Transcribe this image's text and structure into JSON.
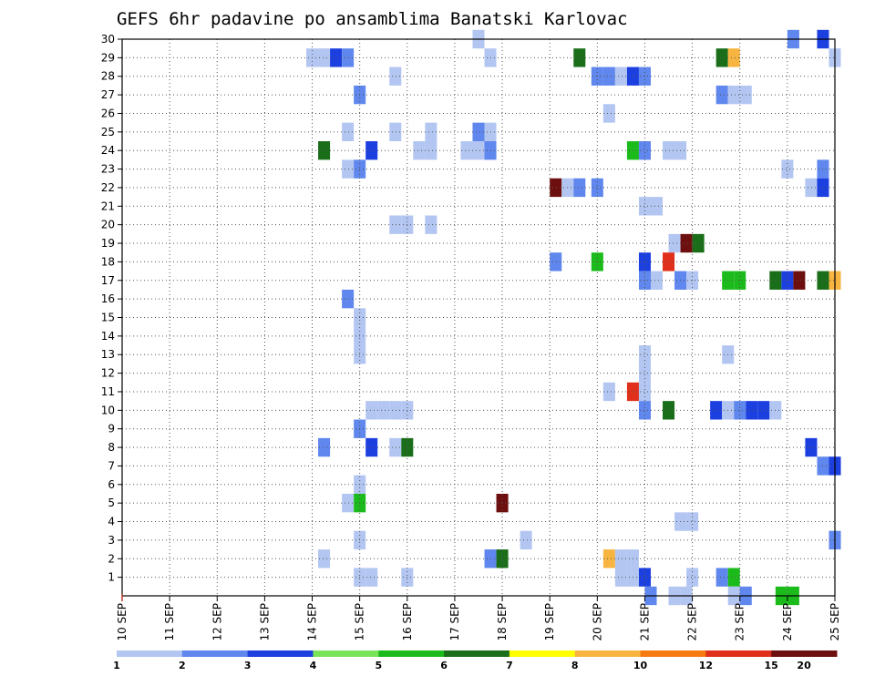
{
  "chart_data": {
    "type": "heatmap",
    "title": "GEFS 6hr padavine po ansamblima Banatski Karlovac",
    "xlabel": "",
    "ylabel": "",
    "x_axis": {
      "unit": "6h step",
      "range": [
        0,
        60
      ],
      "tick_labels": [
        "10 SEP",
        "11 SEP",
        "12 SEP",
        "13 SEP",
        "14 SEP",
        "15 SEP",
        "16 SEP",
        "17 SEP",
        "18 SEP",
        "19 SEP",
        "20 SEP",
        "21 SEP",
        "22 SEP",
        "23 SEP",
        "24 SEP",
        "25 SEP"
      ]
    },
    "y_axis": {
      "range": [
        0,
        30
      ],
      "tick_labels": [
        "1",
        "2",
        "3",
        "4",
        "5",
        "6",
        "7",
        "8",
        "9",
        "10",
        "11",
        "12",
        "13",
        "14",
        "15",
        "16",
        "17",
        "18",
        "19",
        "20",
        "21",
        "22",
        "23",
        "24",
        "25",
        "26",
        "27",
        "28",
        "29",
        "30"
      ]
    },
    "grid": true,
    "colorbar": {
      "placement": "bottom",
      "colors": [
        "#b3c6f2",
        "#5f87ed",
        "#1c3fe0",
        "#79e35a",
        "#1cbb1c",
        "#1a6e1a",
        "#ffff00",
        "#f7b440",
        "#f77a10",
        "#e0301c",
        "#6e0f0f"
      ],
      "tick_labels": [
        "1",
        "2",
        "3",
        "4",
        "5",
        "6",
        "7",
        "8",
        "10",
        "12",
        "15",
        "20"
      ]
    },
    "cells": [
      {
        "x": 30,
        "y": 30,
        "v": 1
      },
      {
        "x": 56.5,
        "y": 30,
        "v": 2
      },
      {
        "x": 59,
        "y": 30,
        "v": 3
      },
      {
        "x": 16,
        "y": 29,
        "v": 1
      },
      {
        "x": 17,
        "y": 29,
        "v": 1
      },
      {
        "x": 18,
        "y": 29,
        "v": 3
      },
      {
        "x": 19,
        "y": 29,
        "v": 2
      },
      {
        "x": 31,
        "y": 29,
        "v": 1
      },
      {
        "x": 38.5,
        "y": 29,
        "v": 6
      },
      {
        "x": 50.5,
        "y": 29,
        "v": 6
      },
      {
        "x": 51.5,
        "y": 29,
        "v": 8
      },
      {
        "x": 60,
        "y": 29,
        "v": 1
      },
      {
        "x": 23,
        "y": 28,
        "v": 1
      },
      {
        "x": 40,
        "y": 28,
        "v": 2
      },
      {
        "x": 41,
        "y": 28,
        "v": 2
      },
      {
        "x": 42,
        "y": 28,
        "v": 1
      },
      {
        "x": 43,
        "y": 28,
        "v": 3
      },
      {
        "x": 44,
        "y": 28,
        "v": 2
      },
      {
        "x": 20,
        "y": 27,
        "v": 2
      },
      {
        "x": 50.5,
        "y": 27,
        "v": 2
      },
      {
        "x": 51.5,
        "y": 27,
        "v": 1
      },
      {
        "x": 52.5,
        "y": 27,
        "v": 1
      },
      {
        "x": 41,
        "y": 26,
        "v": 1
      },
      {
        "x": 19,
        "y": 25,
        "v": 1
      },
      {
        "x": 23,
        "y": 25,
        "v": 1
      },
      {
        "x": 26,
        "y": 25,
        "v": 1
      },
      {
        "x": 30,
        "y": 25,
        "v": 2
      },
      {
        "x": 31,
        "y": 25,
        "v": 1
      },
      {
        "x": 17,
        "y": 24,
        "v": 6
      },
      {
        "x": 21,
        "y": 24,
        "v": 3
      },
      {
        "x": 25,
        "y": 24,
        "v": 1
      },
      {
        "x": 26,
        "y": 24,
        "v": 1
      },
      {
        "x": 29,
        "y": 24,
        "v": 1
      },
      {
        "x": 30,
        "y": 24,
        "v": 1
      },
      {
        "x": 31,
        "y": 24,
        "v": 2
      },
      {
        "x": 43,
        "y": 24,
        "v": 5
      },
      {
        "x": 44,
        "y": 24,
        "v": 2
      },
      {
        "x": 46,
        "y": 24,
        "v": 1
      },
      {
        "x": 47,
        "y": 24,
        "v": 1
      },
      {
        "x": 19,
        "y": 23,
        "v": 1
      },
      {
        "x": 20,
        "y": 23,
        "v": 2
      },
      {
        "x": 56,
        "y": 23,
        "v": 1
      },
      {
        "x": 59,
        "y": 23,
        "v": 2
      },
      {
        "x": 36.5,
        "y": 22,
        "v": 15
      },
      {
        "x": 37.5,
        "y": 22,
        "v": 1
      },
      {
        "x": 38.5,
        "y": 22,
        "v": 2
      },
      {
        "x": 40,
        "y": 22,
        "v": 2
      },
      {
        "x": 58,
        "y": 22,
        "v": 1
      },
      {
        "x": 59,
        "y": 22,
        "v": 3
      },
      {
        "x": 44,
        "y": 21,
        "v": 1
      },
      {
        "x": 45,
        "y": 21,
        "v": 1
      },
      {
        "x": 23,
        "y": 20,
        "v": 1
      },
      {
        "x": 24,
        "y": 20,
        "v": 1
      },
      {
        "x": 26,
        "y": 20,
        "v": 1
      },
      {
        "x": 46.5,
        "y": 19,
        "v": 1
      },
      {
        "x": 47.5,
        "y": 19,
        "v": 20
      },
      {
        "x": 48.5,
        "y": 19,
        "v": 6
      },
      {
        "x": 36.5,
        "y": 18,
        "v": 2
      },
      {
        "x": 40,
        "y": 18,
        "v": 5
      },
      {
        "x": 44,
        "y": 18,
        "v": 3
      },
      {
        "x": 46,
        "y": 18,
        "v": 12
      },
      {
        "x": 44,
        "y": 17,
        "v": 2
      },
      {
        "x": 45,
        "y": 17,
        "v": 1
      },
      {
        "x": 47,
        "y": 17,
        "v": 2
      },
      {
        "x": 48,
        "y": 17,
        "v": 1
      },
      {
        "x": 51,
        "y": 17,
        "v": 5
      },
      {
        "x": 52,
        "y": 17,
        "v": 5
      },
      {
        "x": 55,
        "y": 17,
        "v": 6
      },
      {
        "x": 56,
        "y": 17,
        "v": 3
      },
      {
        "x": 57,
        "y": 17,
        "v": 15
      },
      {
        "x": 59,
        "y": 17,
        "v": 6
      },
      {
        "x": 60,
        "y": 17,
        "v": 8
      },
      {
        "x": 19,
        "y": 16,
        "v": 2
      },
      {
        "x": 20,
        "y": 15,
        "v": 1
      },
      {
        "x": 20,
        "y": 14,
        "v": 1
      },
      {
        "x": 20,
        "y": 13,
        "v": 1
      },
      {
        "x": 44,
        "y": 13,
        "v": 1
      },
      {
        "x": 51,
        "y": 13,
        "v": 1
      },
      {
        "x": 44,
        "y": 12,
        "v": 1
      },
      {
        "x": 41,
        "y": 11,
        "v": 1
      },
      {
        "x": 43,
        "y": 11,
        "v": 12
      },
      {
        "x": 44,
        "y": 11,
        "v": 1
      },
      {
        "x": 21,
        "y": 10,
        "v": 1
      },
      {
        "x": 22,
        "y": 10,
        "v": 1
      },
      {
        "x": 23,
        "y": 10,
        "v": 1
      },
      {
        "x": 24,
        "y": 10,
        "v": 1
      },
      {
        "x": 44,
        "y": 10,
        "v": 2
      },
      {
        "x": 46,
        "y": 10,
        "v": 6
      },
      {
        "x": 50,
        "y": 10,
        "v": 3
      },
      {
        "x": 51,
        "y": 10,
        "v": 1
      },
      {
        "x": 52,
        "y": 10,
        "v": 2
      },
      {
        "x": 53,
        "y": 10,
        "v": 3
      },
      {
        "x": 54,
        "y": 10,
        "v": 3
      },
      {
        "x": 55,
        "y": 10,
        "v": 1
      },
      {
        "x": 20,
        "y": 9,
        "v": 2
      },
      {
        "x": 17,
        "y": 8,
        "v": 2
      },
      {
        "x": 21,
        "y": 8,
        "v": 3
      },
      {
        "x": 23,
        "y": 8,
        "v": 1
      },
      {
        "x": 24,
        "y": 8,
        "v": 6
      },
      {
        "x": 58,
        "y": 8,
        "v": 3
      },
      {
        "x": 59,
        "y": 7,
        "v": 2
      },
      {
        "x": 60,
        "y": 7,
        "v": 3
      },
      {
        "x": 20,
        "y": 6,
        "v": 1
      },
      {
        "x": 19,
        "y": 5,
        "v": 1
      },
      {
        "x": 20,
        "y": 5,
        "v": 5
      },
      {
        "x": 32,
        "y": 5,
        "v": 20
      },
      {
        "x": 47,
        "y": 4,
        "v": 1
      },
      {
        "x": 48,
        "y": 4,
        "v": 1
      },
      {
        "x": 20,
        "y": 3,
        "v": 1
      },
      {
        "x": 34,
        "y": 3,
        "v": 1
      },
      {
        "x": 60,
        "y": 3,
        "v": 2
      },
      {
        "x": 17,
        "y": 2,
        "v": 1
      },
      {
        "x": 31,
        "y": 2,
        "v": 2
      },
      {
        "x": 32,
        "y": 2,
        "v": 6
      },
      {
        "x": 41,
        "y": 2,
        "v": 8
      },
      {
        "x": 42,
        "y": 2,
        "v": 1
      },
      {
        "x": 43,
        "y": 2,
        "v": 1
      },
      {
        "x": 20,
        "y": 1,
        "v": 1
      },
      {
        "x": 21,
        "y": 1,
        "v": 1
      },
      {
        "x": 24,
        "y": 1,
        "v": 1
      },
      {
        "x": 42,
        "y": 1,
        "v": 1
      },
      {
        "x": 43,
        "y": 1,
        "v": 1
      },
      {
        "x": 44,
        "y": 1,
        "v": 3
      },
      {
        "x": 48,
        "y": 1,
        "v": 1
      },
      {
        "x": 50.5,
        "y": 1,
        "v": 2
      },
      {
        "x": 51.5,
        "y": 1,
        "v": 5
      },
      {
        "x": 44.5,
        "y": 0,
        "v": 2
      },
      {
        "x": 46.5,
        "y": 0,
        "v": 1
      },
      {
        "x": 47.5,
        "y": 0,
        "v": 1
      },
      {
        "x": 51.5,
        "y": 0,
        "v": 1
      },
      {
        "x": 52.5,
        "y": 0,
        "v": 2
      },
      {
        "x": 55.5,
        "y": 0,
        "v": 5
      },
      {
        "x": 56.5,
        "y": 0,
        "v": 5
      }
    ]
  }
}
